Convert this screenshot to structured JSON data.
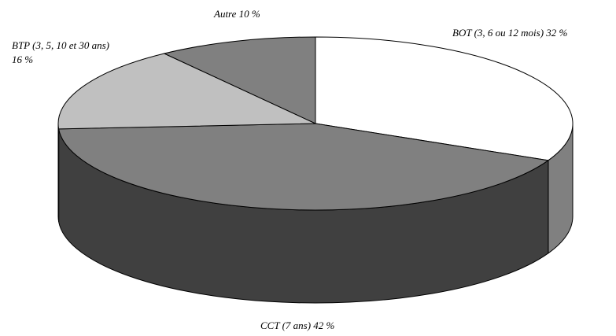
{
  "chart_data": {
    "type": "pie",
    "style": "3d",
    "title": "",
    "legend": "none",
    "slices": [
      {
        "label": "BOT (3, 6 ou 12 mois) 32 %",
        "value": 32,
        "color": "#ffffff"
      },
      {
        "label": "CCT (7 ans) 42 %",
        "value": 42,
        "color": "#808080"
      },
      {
        "label": "BTP (3, 5, 10 et 30 ans)",
        "label_line2": "16 %",
        "value": 16,
        "color": "#c0c0c0"
      },
      {
        "label": "Autre 10 %",
        "value": 10,
        "color": "#808080"
      }
    ],
    "side_color": "#404040"
  }
}
